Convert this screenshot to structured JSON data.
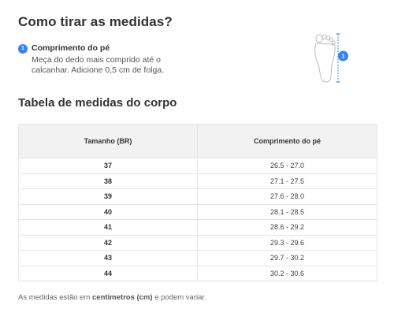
{
  "how_to": {
    "title": "Como tirar as medidas?",
    "step": {
      "number": "1",
      "title": "Comprimento do pé",
      "description": "Meça do dedo mais comprido até o calcanhar. Adicione 0,5 cm de folga."
    },
    "illustration": {
      "icon": "foot-outline-icon",
      "marker_number": "1",
      "accent_color": "#3483fa"
    }
  },
  "table_section": {
    "title": "Tabela de medidas do corpo",
    "headers": [
      "Tamanho (BR)",
      "Comprimento do pé"
    ],
    "rows": [
      {
        "size": "37",
        "length": "26.5 - 27.0"
      },
      {
        "size": "38",
        "length": "27.1 - 27.5"
      },
      {
        "size": "39",
        "length": "27.6 - 28.0"
      },
      {
        "size": "40",
        "length": "28.1 - 28.5"
      },
      {
        "size": "41",
        "length": "28.6 - 29.2"
      },
      {
        "size": "42",
        "length": "29.3 - 29.6"
      },
      {
        "size": "43",
        "length": "29.7 - 30.2"
      },
      {
        "size": "44",
        "length": "30.2 - 30.6"
      }
    ]
  },
  "footnote": {
    "prefix": "As medidas estão em ",
    "emphasis": "centímetros (cm)",
    "suffix": " e podem variar."
  }
}
